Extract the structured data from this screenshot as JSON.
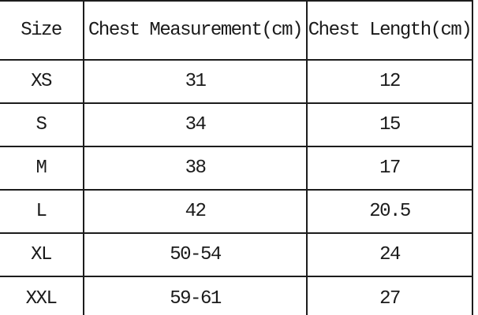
{
  "colors": {
    "background": "#ffffff",
    "border": "#1c1c1c",
    "text": "#1a1a1a"
  },
  "chart_data": {
    "type": "table",
    "columns": [
      "Size",
      "Chest Measurement(cm)",
      "Chest Length(cm)"
    ],
    "rows": [
      [
        "XS",
        "31",
        "12"
      ],
      [
        "S",
        "34",
        "15"
      ],
      [
        "M",
        "38",
        "17"
      ],
      [
        "L",
        "42",
        "20.5"
      ],
      [
        "XL",
        "50-54",
        "24"
      ],
      [
        "XXL",
        "59-61",
        "27"
      ]
    ]
  }
}
